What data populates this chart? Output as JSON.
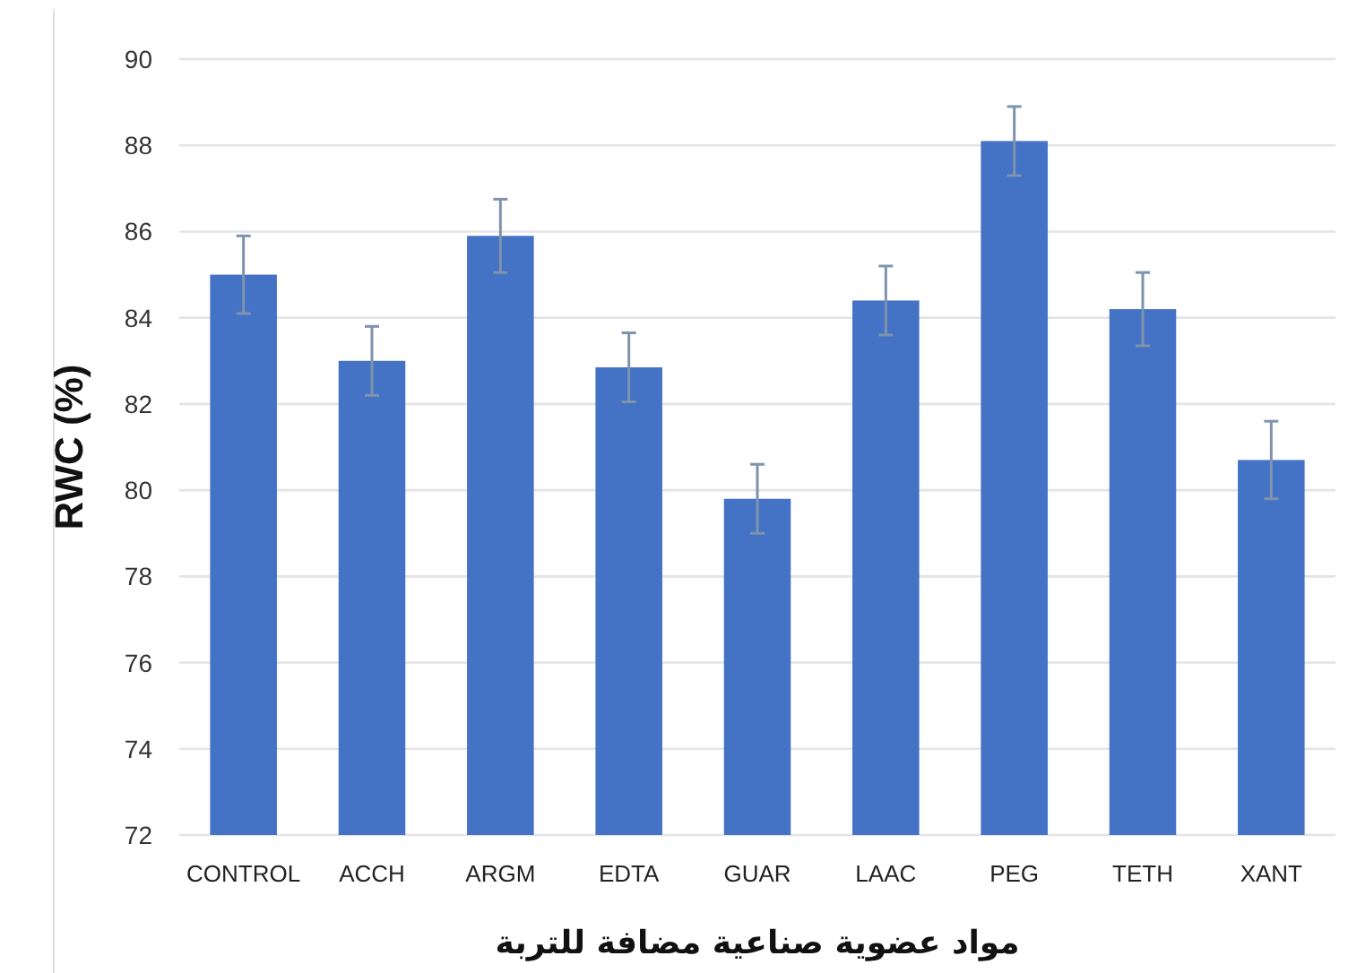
{
  "chart_data": {
    "type": "bar",
    "xlabel": "مواد عضوية صناعية مضافة للتربة",
    "ylabel": "RWC (%)",
    "categories": [
      "CONTROL",
      "ACCH",
      "ARGM",
      "EDTA",
      "GUAR",
      "LAAC",
      "PEG",
      "TETH",
      "XANT"
    ],
    "values": [
      85.0,
      83.0,
      85.9,
      82.85,
      79.8,
      84.4,
      88.1,
      84.2,
      80.7
    ],
    "errors": [
      0.9,
      0.8,
      0.85,
      0.8,
      0.8,
      0.8,
      0.8,
      0.85,
      0.9
    ],
    "color": "#4472c4",
    "ylim": [
      72,
      90
    ],
    "yticks": [
      72,
      74,
      76,
      78,
      80,
      82,
      84,
      86,
      88,
      90
    ],
    "grid": "y"
  }
}
